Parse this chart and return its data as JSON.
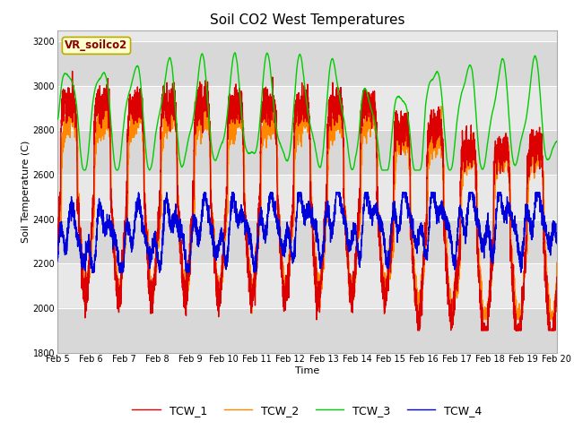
{
  "title": "Soil CO2 West Temperatures",
  "xlabel": "Time",
  "ylabel": "Soil Temperature (C)",
  "label_box_text": "VR_soilco2",
  "ylim": [
    1800,
    3250
  ],
  "xlim": [
    0,
    15
  ],
  "x_tick_labels": [
    "Feb 5",
    "Feb 6",
    "Feb 7",
    "Feb 8",
    "Feb 9",
    "Feb 10",
    "Feb 11",
    "Feb 12",
    "Feb 13",
    "Feb 14",
    "Feb 15",
    "Feb 16",
    "Feb 17",
    "Feb 18",
    "Feb 19",
    "Feb 20"
  ],
  "yticks": [
    1800,
    2000,
    2200,
    2400,
    2600,
    2800,
    3000,
    3200
  ],
  "colors": [
    "#dd0000",
    "#ff8800",
    "#00cc00",
    "#0000dd"
  ],
  "line_labels": [
    "TCW_1",
    "TCW_2",
    "TCW_3",
    "TCW_4"
  ],
  "background_color": "#ffffff",
  "plot_bg_color": "#e8e8e8",
  "band_color": "#d8d8d8",
  "title_fontsize": 11,
  "axis_label_fontsize": 8,
  "tick_fontsize": 7,
  "legend_fontsize": 9,
  "label_box_facecolor": "#ffffcc",
  "label_box_edgecolor": "#bbaa00",
  "label_text_color": "#880000"
}
